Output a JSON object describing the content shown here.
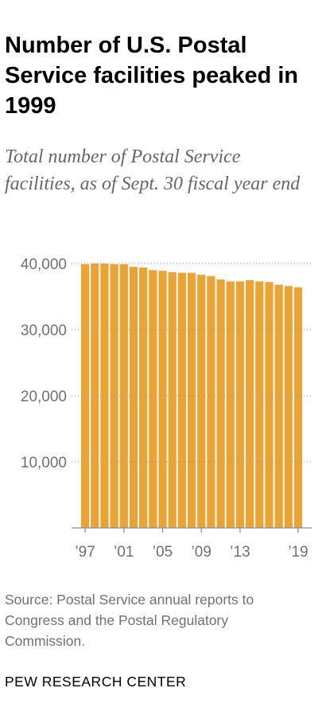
{
  "title": "Number of U.S. Postal Service facilities peaked in 1999",
  "subtitle": "Total number of Postal Service facilities, as of Sept. 30 fiscal year end",
  "source": "Source: Postal Service annual reports to Congress and the Postal Regulatory Commission.",
  "brand": "PEW RESEARCH CENTER",
  "colors": {
    "bar": "#EBA433",
    "grid": "#999999",
    "axis": "#8c8c8c",
    "tick_text": "#707070"
  },
  "chart_data": {
    "type": "bar",
    "title": "Number of U.S. Postal Service facilities peaked in 1999",
    "xlabel": "",
    "ylabel": "",
    "ylim": [
      0,
      40000
    ],
    "grid": true,
    "legend": "none",
    "categories": [
      "1997",
      "1998",
      "1999",
      "2000",
      "2001",
      "2002",
      "2003",
      "2004",
      "2005",
      "2006",
      "2007",
      "2008",
      "2009",
      "2010",
      "2011",
      "2012",
      "2013",
      "2014",
      "2015",
      "2016",
      "2017",
      "2018",
      "2019"
    ],
    "values": [
      39900,
      40000,
      40000,
      39900,
      39900,
      39500,
      39400,
      39000,
      38900,
      38700,
      38600,
      38600,
      38300,
      38100,
      37600,
      37300,
      37300,
      37500,
      37300,
      37200,
      36800,
      36600,
      36400
    ],
    "y_ticks": [
      {
        "value": 10000,
        "label": "10,000"
      },
      {
        "value": 20000,
        "label": "20,000"
      },
      {
        "value": 30000,
        "label": "30,000"
      },
      {
        "value": 40000,
        "label": "40,000"
      }
    ],
    "x_ticks": [
      {
        "index": 0,
        "label": "’97"
      },
      {
        "index": 4,
        "label": "’01"
      },
      {
        "index": 8,
        "label": "’05"
      },
      {
        "index": 12,
        "label": "’09"
      },
      {
        "index": 16,
        "label": "’13"
      },
      {
        "index": 22,
        "label": "’19"
      }
    ]
  }
}
